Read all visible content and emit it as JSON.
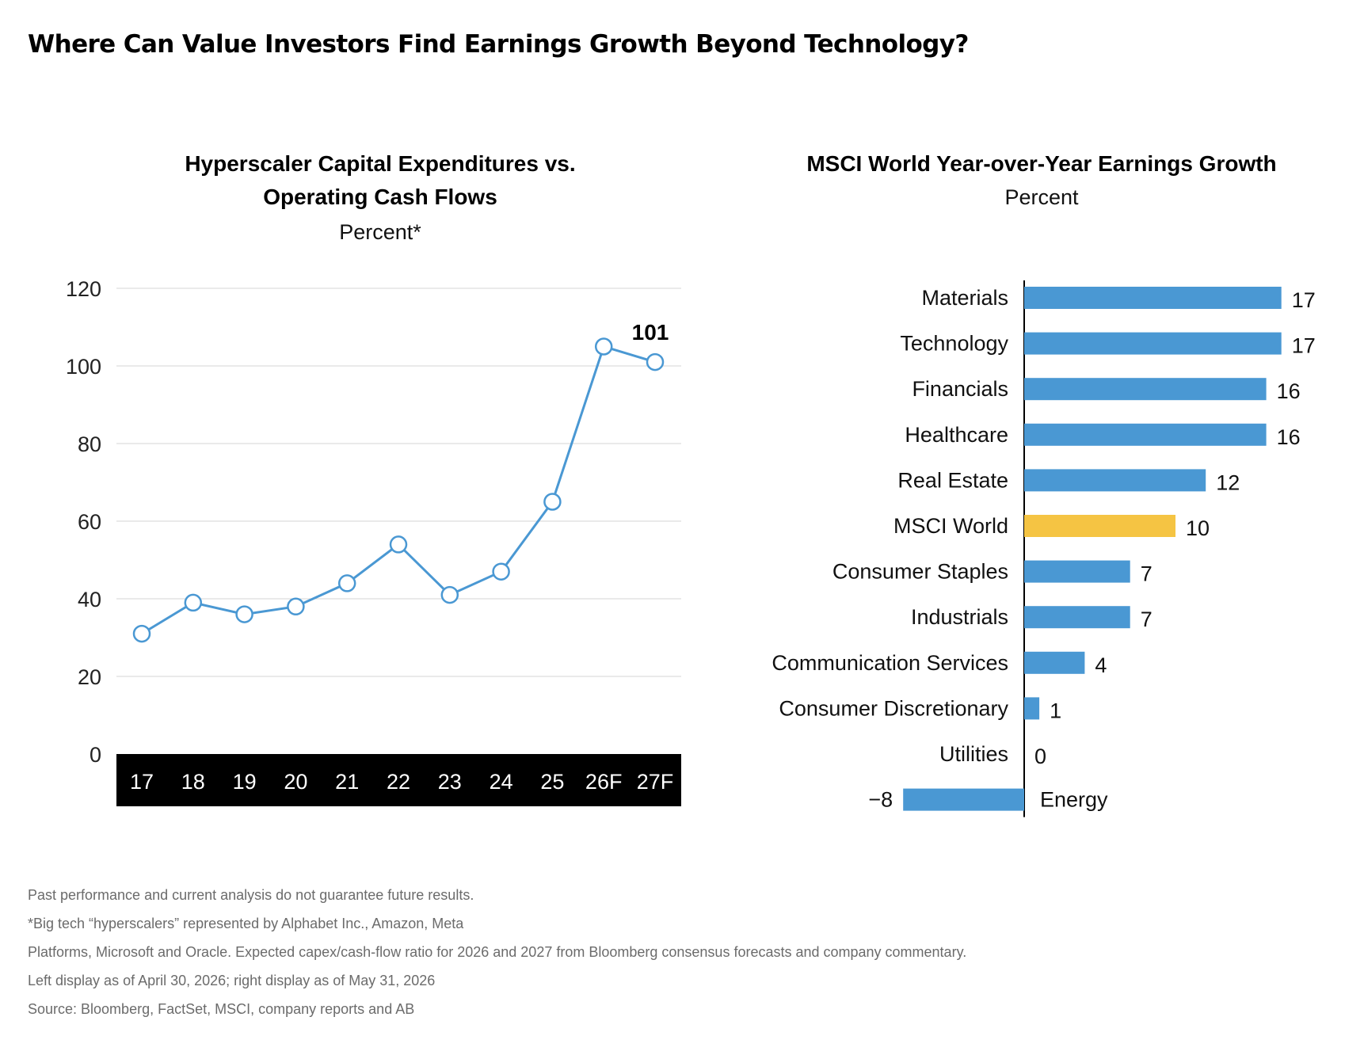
{
  "title": "Where Can Value Investors Find Earnings Growth Beyond Technology?",
  "colors": {
    "line": "#4a98d3",
    "bar": "#4a98d3",
    "highlight_bar": "#f5c443",
    "grid": "#d4d4d4",
    "axis_band": "#000000",
    "footnote_text": "#6b6b6b"
  },
  "chart_data": [
    {
      "type": "line",
      "title": "Hyperscaler Capital Expenditures vs. Operating Cash Flows",
      "title_lines": [
        "Hyperscaler Capital Expenditures vs.",
        "Operating Cash Flows"
      ],
      "subtitle": "Percent*",
      "categories": [
        "17",
        "18",
        "19",
        "20",
        "21",
        "22",
        "23",
        "24",
        "25",
        "26F",
        "27F"
      ],
      "values": [
        31,
        39,
        36,
        38,
        44,
        54,
        41,
        47,
        65,
        105,
        101
      ],
      "yticks": [
        0,
        20,
        40,
        60,
        80,
        100,
        120
      ],
      "ylim": [
        0,
        120
      ],
      "grid": true,
      "x_axis_style": "white labels on black band",
      "annotations": [
        {
          "category": "27F",
          "text": "101"
        }
      ]
    },
    {
      "type": "bar",
      "orientation": "horizontal",
      "title": "MSCI World Year-over-Year Earnings Growth",
      "subtitle": "Percent",
      "categories": [
        "Materials",
        "Technology",
        "Financials",
        "Healthcare",
        "Real Estate",
        "MSCI World",
        "Consumer Staples",
        "Industrials",
        "Communication Services",
        "Consumer Discretionary",
        "Utilities",
        "Energy"
      ],
      "values": [
        17,
        17,
        16,
        16,
        12,
        10,
        7,
        7,
        4,
        1,
        0,
        -8
      ],
      "value_labels": [
        "17",
        "17",
        "16",
        "16",
        "12",
        "10",
        "7",
        "7",
        "4",
        "1",
        "0",
        "−8"
      ],
      "highlight": "MSCI World",
      "xlim": [
        -8,
        17
      ]
    }
  ],
  "footnotes": [
    "Past performance and current analysis do not guarantee future results.",
    "*Big tech “hyperscalers” represented by Alphabet Inc., Amazon, Meta",
    "Platforms, Microsoft and Oracle. Expected capex/cash-flow ratio for 2026 and 2027 from Bloomberg consensus forecasts and company commentary.",
    "Left display as of April 30, 2026; right display as of May 31, 2026",
    "Source: Bloomberg, FactSet, MSCI, company reports and AB"
  ]
}
